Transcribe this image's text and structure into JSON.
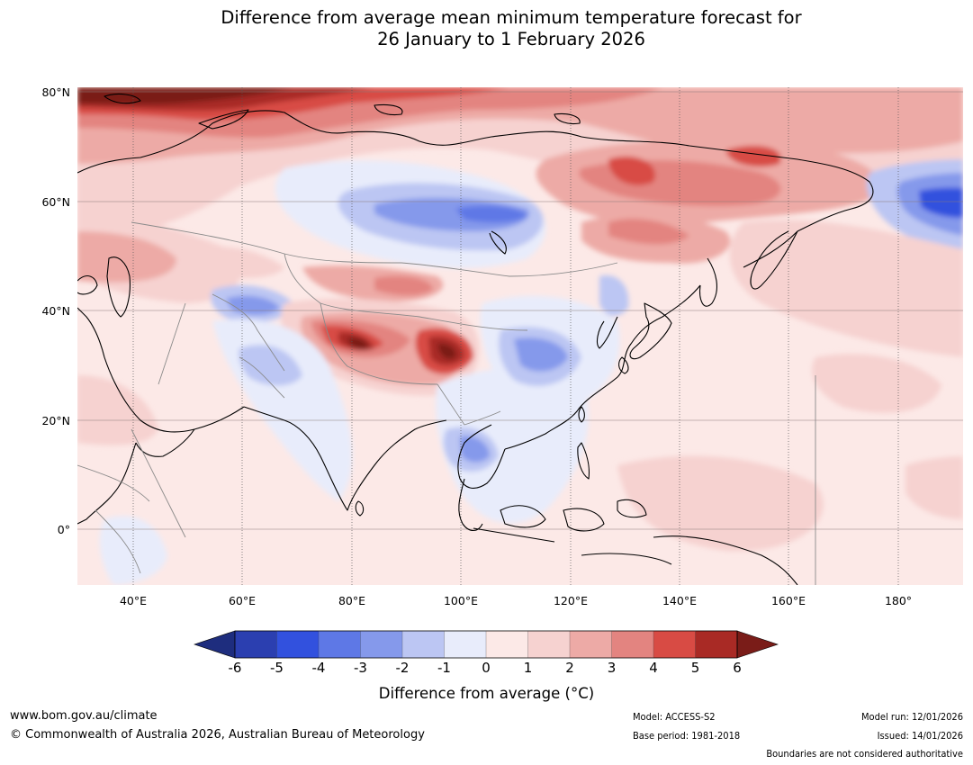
{
  "title": {
    "line1": "Difference from average mean minimum temperature forecast for",
    "line2": "26 January to 1 February 2026"
  },
  "map": {
    "lat_labels": [
      "80°N",
      "60°N",
      "40°N",
      "20°N",
      "0°"
    ],
    "lon_labels": [
      "40°E",
      "60°E",
      "80°E",
      "100°E",
      "120°E",
      "140°E",
      "160°E",
      "180°"
    ],
    "colors": {
      "ocean_base": "#fce9e7",
      "neg6": "#1e2d7e",
      "neg5": "#2b3fb0",
      "neg4": "#3251de",
      "neg3": "#5e78e6",
      "neg2": "#8599eb",
      "neg1": "#bcc6f3",
      "zero_neg": "#e8ecfb",
      "pos1": "#f6d2d0",
      "pos2": "#edaaa6",
      "pos3": "#e38480",
      "pos4": "#d84b44",
      "pos5": "#a92a25",
      "pos6": "#7a1c18"
    }
  },
  "colorbar": {
    "ticks": [
      "-6",
      "-5",
      "-4",
      "-3",
      "-2",
      "-1",
      "0",
      "1",
      "2",
      "3",
      "4",
      "5",
      "6"
    ],
    "colors": [
      "#1e2d7e",
      "#2b3fb0",
      "#3251de",
      "#5e78e6",
      "#8599eb",
      "#bcc6f3",
      "#e8ecfb",
      "#fce9e7",
      "#f6d2d0",
      "#edaaa6",
      "#e38480",
      "#d84b44",
      "#a92a25",
      "#7a1c18"
    ],
    "label": "Difference from average (°C)"
  },
  "footer": {
    "website": "www.bom.gov.au/climate",
    "copyright": "© Commonwealth of Australia 2026, Australian Bureau of Meteorology",
    "model": "Model: ACCESS-S2",
    "base_period": "Base period: 1981-2018",
    "model_run": "Model run: 12/01/2026",
    "issued": "Issued: 14/01/2026",
    "disclaimer": "Boundaries are not considered authoritative"
  }
}
